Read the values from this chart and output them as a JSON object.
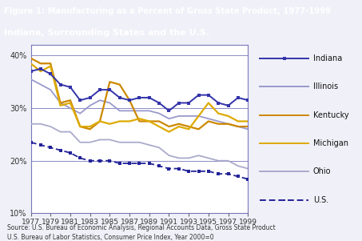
{
  "title": "Figure 1: Manufacturing as a Percent of Gross State Product, 1977-1999",
  "subtitle": "Indiana, Surrounding States and the U.S.",
  "title_bg": "#1a1aaa",
  "subtitle_bg": "#c8960a",
  "outer_bg": "#f0f0f8",
  "chart_bg": "#ffffff",
  "source_text1": "Source: U.S. Bureau of Economic Analysis, Regional Accounts Data, Gross State Product",
  "source_text2": "U.S. Bureau of Labor Statistics, Consumer Price Index, Year 2000=0",
  "years": [
    1977,
    1978,
    1979,
    1980,
    1981,
    1982,
    1983,
    1984,
    1985,
    1986,
    1987,
    1988,
    1989,
    1990,
    1991,
    1992,
    1993,
    1994,
    1995,
    1996,
    1997,
    1998,
    1999
  ],
  "Indiana": [
    37.0,
    37.5,
    36.5,
    34.5,
    34.0,
    31.5,
    32.0,
    33.5,
    33.5,
    32.0,
    31.5,
    32.0,
    32.0,
    31.0,
    29.5,
    31.0,
    31.0,
    32.5,
    32.5,
    31.0,
    30.5,
    32.0,
    31.5
  ],
  "Illinois": [
    35.5,
    34.5,
    33.5,
    31.0,
    30.0,
    29.0,
    30.5,
    31.5,
    31.0,
    29.5,
    29.5,
    29.5,
    29.5,
    29.0,
    28.0,
    28.5,
    28.5,
    28.5,
    28.0,
    27.5,
    27.0,
    26.5,
    26.0
  ],
  "Kentucky": [
    39.5,
    38.5,
    38.5,
    31.0,
    31.5,
    26.5,
    26.0,
    27.5,
    35.0,
    34.5,
    31.5,
    27.5,
    27.5,
    27.5,
    26.5,
    27.0,
    26.5,
    26.0,
    27.5,
    27.0,
    27.0,
    26.5,
    26.5
  ],
  "Michigan": [
    38.5,
    37.0,
    38.0,
    30.5,
    31.0,
    26.5,
    26.5,
    27.5,
    27.0,
    27.5,
    27.5,
    28.0,
    27.5,
    26.5,
    25.5,
    26.5,
    26.0,
    28.5,
    31.0,
    29.0,
    28.5,
    27.5,
    27.5
  ],
  "Ohio": [
    27.0,
    27.0,
    26.5,
    25.5,
    25.5,
    23.5,
    23.5,
    24.0,
    24.0,
    23.5,
    23.5,
    23.5,
    23.0,
    22.5,
    21.0,
    20.5,
    20.5,
    21.0,
    20.5,
    20.0,
    20.0,
    19.0,
    18.5
  ],
  "US": [
    23.5,
    23.0,
    22.5,
    22.0,
    21.5,
    20.5,
    20.0,
    20.0,
    20.0,
    19.5,
    19.5,
    19.5,
    19.5,
    19.0,
    18.5,
    18.5,
    18.0,
    18.0,
    18.0,
    17.5,
    17.5,
    17.0,
    16.5
  ],
  "indiana_color": "#3333aa",
  "illinois_color": "#9999cc",
  "kentucky_color": "#cc8800",
  "michigan_color": "#ddaa00",
  "ohio_color": "#aaaacc",
  "us_color": "#222299",
  "grid_color": "#7777bb",
  "border_color": "#7777bb",
  "ylim": [
    10,
    42
  ],
  "yticks": [
    10,
    20,
    30,
    40
  ],
  "ytick_labels": [
    "10%",
    "20%",
    "30%",
    "40%"
  ]
}
